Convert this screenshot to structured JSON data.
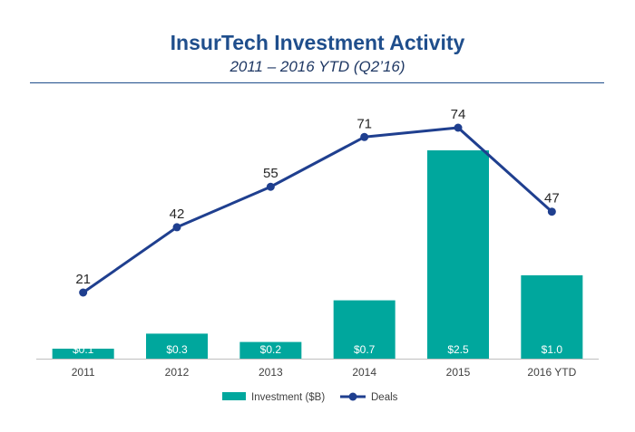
{
  "chart_data": {
    "type": "bar",
    "title": "InsurTech Investment Activity",
    "subtitle": "2011 – 2016 YTD (Q2’16)",
    "categories": [
      "2011",
      "2012",
      "2013",
      "2014",
      "2015",
      "2016 YTD"
    ],
    "series": [
      {
        "name": "Investment ($B)",
        "type": "bar",
        "values": [
          0.1,
          0.3,
          0.2,
          0.7,
          2.5,
          1.0
        ],
        "labels": [
          "$0.1",
          "$0.3",
          "$0.2",
          "$0.7",
          "$2.5",
          "$1.0"
        ]
      },
      {
        "name": "Deals",
        "type": "line",
        "values": [
          21,
          42,
          55,
          71,
          74,
          47
        ],
        "labels": [
          "21",
          "42",
          "55",
          "71",
          "74",
          "47"
        ]
      }
    ],
    "bar_ylim": [
      0,
      3.0
    ],
    "line_ylim": [
      -11,
      84
    ],
    "legend_position": "bottom",
    "colors": {
      "bar": "#00a79d",
      "line": "#1f3f8f",
      "title": "#1f4e8c"
    }
  }
}
